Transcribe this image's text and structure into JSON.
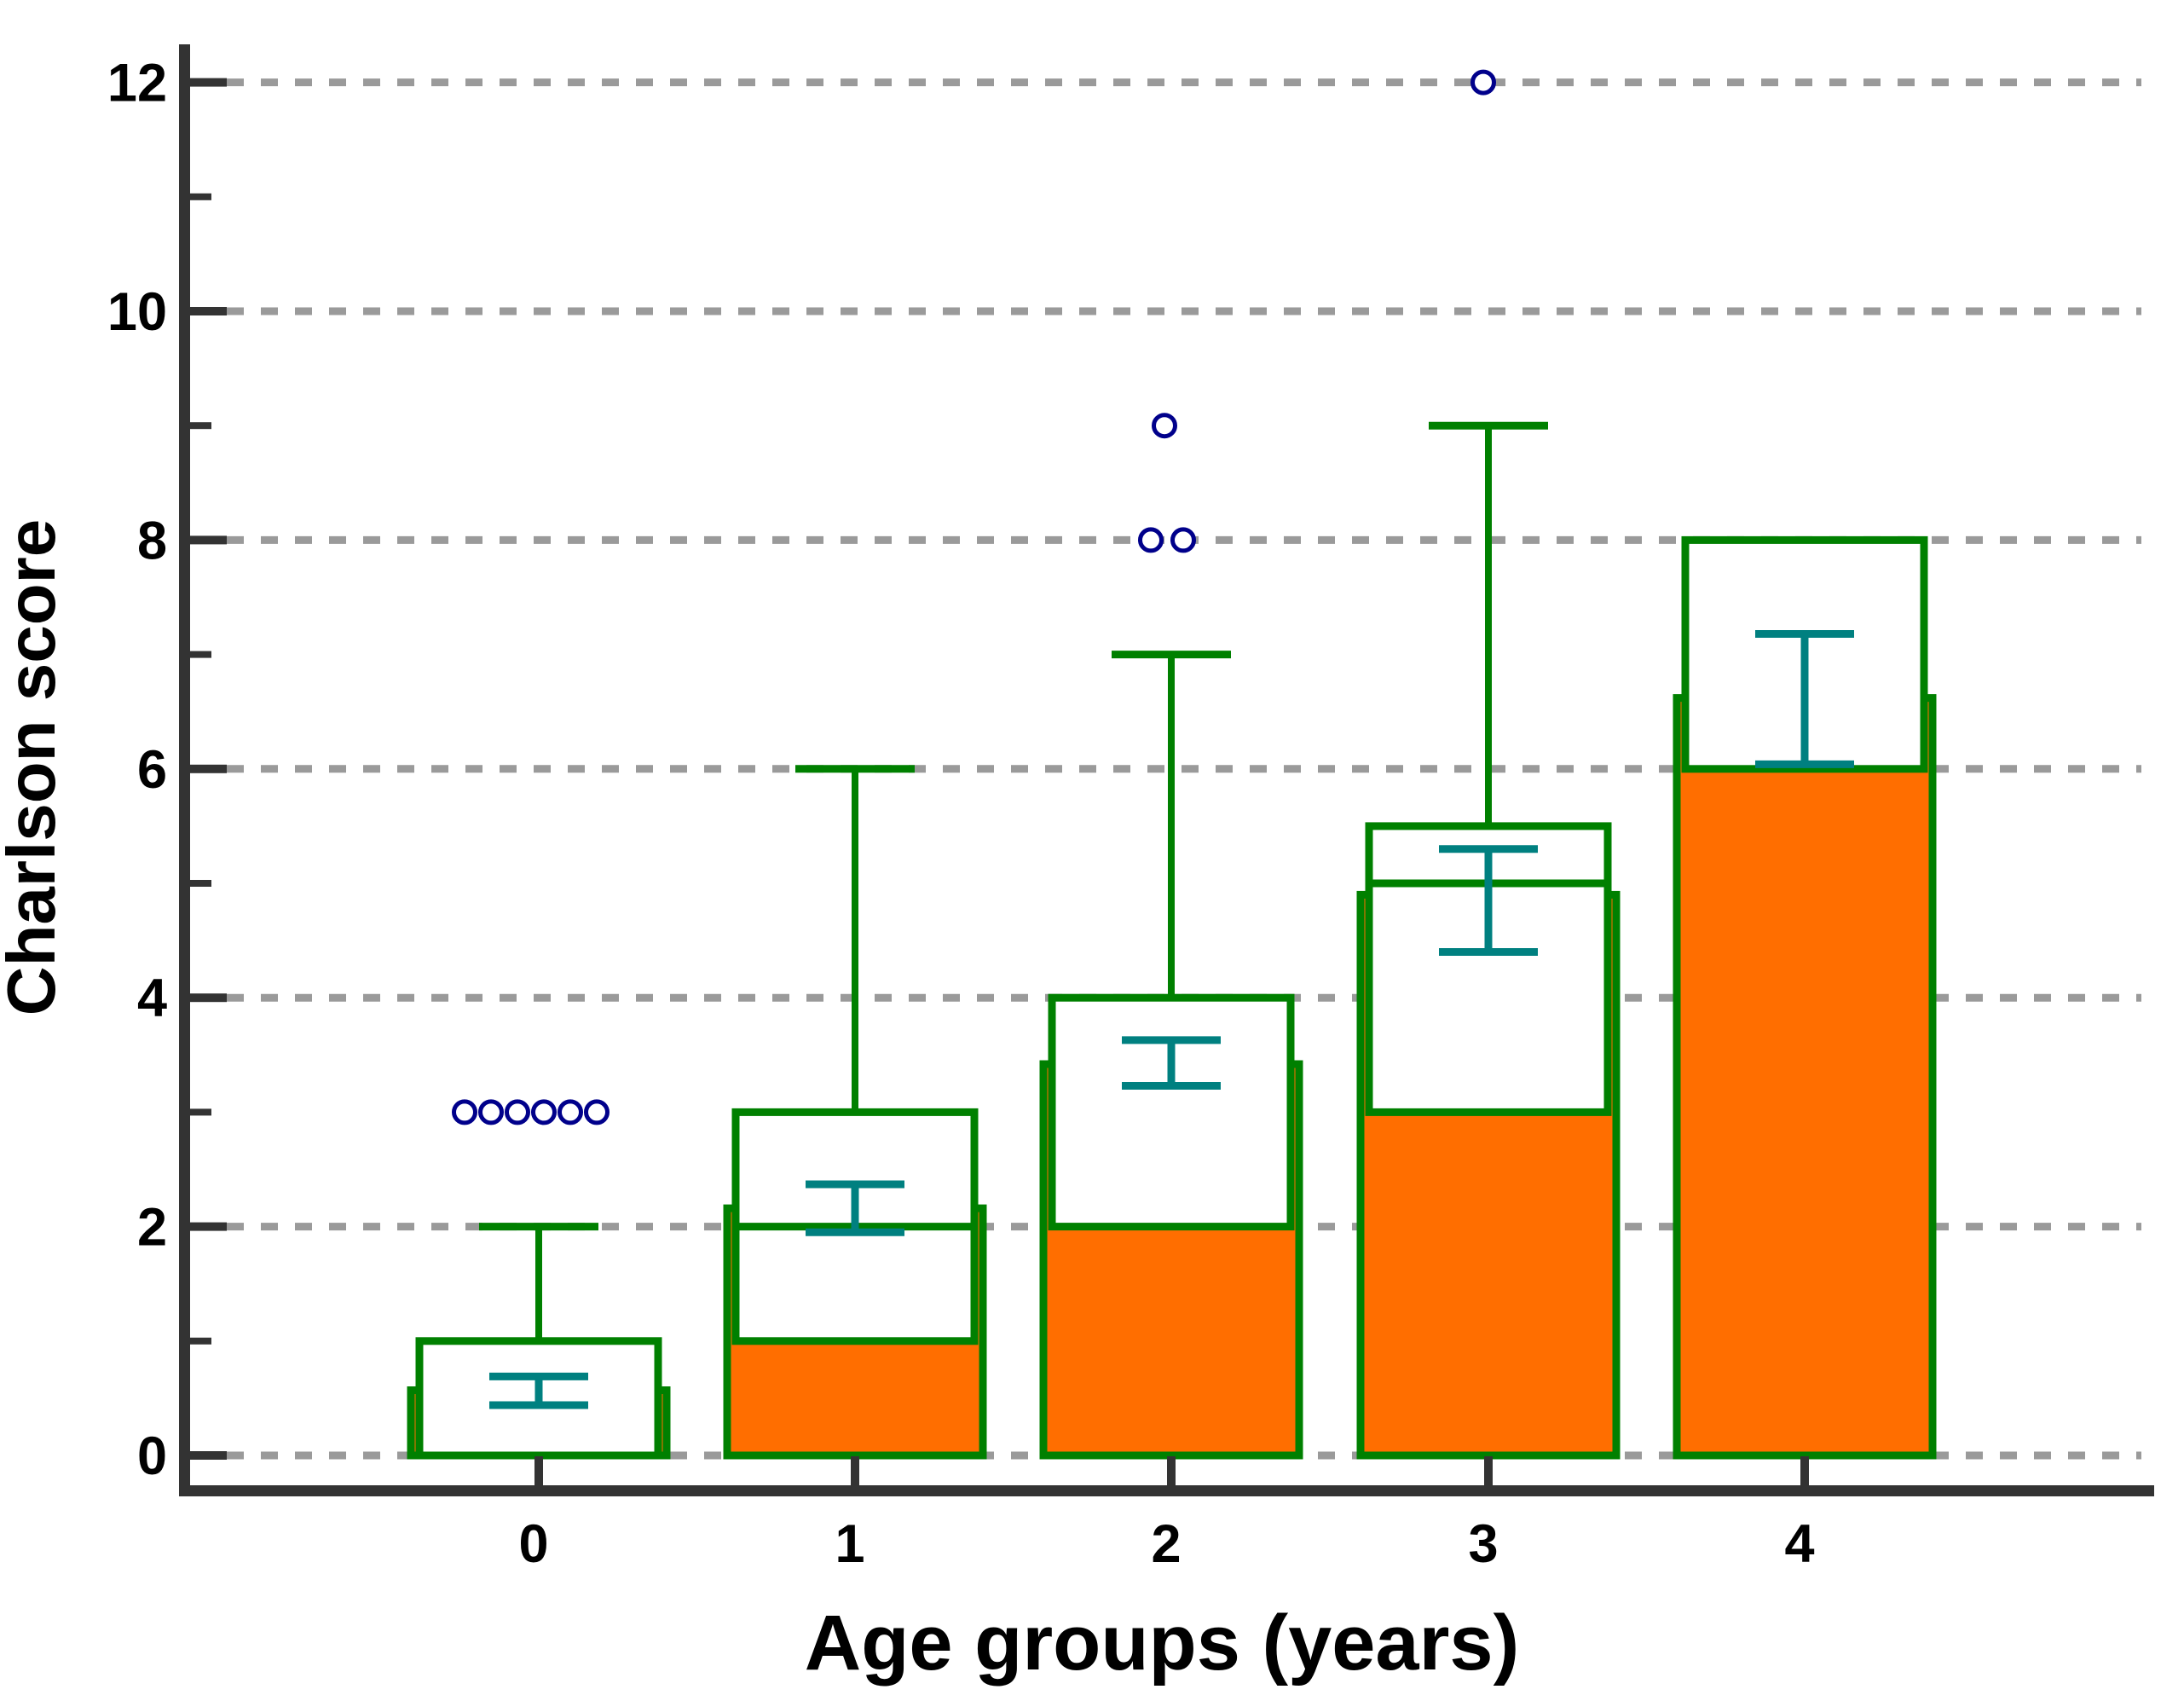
{
  "style": {
    "background": "#ffffff",
    "bar_fill": "#FF6E00",
    "box_stroke": "#008000",
    "box_fill": "#ffffff",
    "ci_color": "#008080",
    "outlier_stroke": "#00008B",
    "outlier_fill": "#ffffff",
    "grid_color": "#9A9A9A",
    "axis_color": "#333333",
    "text_color": "#000000"
  },
  "chart_data": {
    "type": "box-bar-combo",
    "title": "",
    "xlabel": "Age groups (years)",
    "ylabel": "Charlson score",
    "x_tick_labels": [
      "0",
      "1",
      "2",
      "3",
      "4"
    ],
    "y_major_ticks": [
      0,
      2,
      4,
      6,
      8,
      10,
      12
    ],
    "y_tick_labels": [
      "0",
      "2",
      "4",
      "6",
      "8",
      "10",
      "12"
    ],
    "y_minor_ticks": [
      1,
      3,
      5,
      7,
      9,
      11
    ],
    "ylim": [
      0,
      12.35
    ],
    "grid": {
      "style": "horizontal dashed at labeled (even) values",
      "color": "#9A9A9A"
    },
    "legend": "none",
    "series": [
      {
        "name": "mean (orange bar)",
        "type": "bar",
        "values": [
          0.57,
          2.16,
          3.42,
          4.9,
          6.62
        ]
      },
      {
        "name": "95% CI (teal error bar)",
        "type": "errorbar",
        "lo": [
          0.44,
          1.95,
          3.23,
          4.4,
          6.04
        ],
        "hi": [
          0.69,
          2.37,
          3.63,
          5.3,
          7.18
        ]
      },
      {
        "name": "boxplot (green)",
        "type": "boxplot",
        "q1": [
          0,
          1,
          2,
          3,
          6
        ],
        "median": [
          0,
          2,
          2,
          5,
          6
        ],
        "q3": [
          1,
          3,
          4,
          5.5,
          8
        ],
        "whisker_high": [
          2,
          6,
          7,
          9,
          null
        ]
      },
      {
        "name": "outliers (navy circles)",
        "type": "scatter",
        "points": [
          [
            0,
            3
          ],
          [
            0,
            3
          ],
          [
            0,
            3
          ],
          [
            0,
            3
          ],
          [
            0,
            3
          ],
          [
            0,
            3
          ],
          [
            2,
            9
          ],
          [
            2,
            8
          ],
          [
            2,
            8
          ],
          [
            3,
            12
          ]
        ]
      }
    ],
    "groups": [
      {
        "label": "0",
        "mean": 0.57,
        "ci_lo": 0.44,
        "ci_hi": 0.69,
        "q1": 0,
        "median": 0,
        "q3": 1,
        "whisker_high": 2,
        "outliers": [
          {
            "dx": -87,
            "y": 3
          },
          {
            "dx": -56,
            "y": 3
          },
          {
            "dx": -25,
            "y": 3
          },
          {
            "dx": 6,
            "y": 3
          },
          {
            "dx": 37,
            "y": 3
          },
          {
            "dx": 68,
            "y": 3
          }
        ]
      },
      {
        "label": "1",
        "mean": 2.16,
        "ci_lo": 1.95,
        "ci_hi": 2.37,
        "q1": 1,
        "median": 2,
        "q3": 3,
        "whisker_high": 6,
        "outliers": []
      },
      {
        "label": "2",
        "mean": 3.42,
        "ci_lo": 3.23,
        "ci_hi": 3.63,
        "q1": 2,
        "median": 2,
        "q3": 4,
        "whisker_high": 7,
        "outliers": [
          {
            "dx": -8,
            "y": 9
          },
          {
            "dx": -24,
            "y": 8
          },
          {
            "dx": 14,
            "y": 8
          }
        ]
      },
      {
        "label": "3",
        "mean": 4.9,
        "ci_lo": 4.4,
        "ci_hi": 5.3,
        "q1": 3,
        "median": 5,
        "q3": 5.5,
        "whisker_high": 9,
        "outliers": [
          {
            "dx": -6,
            "y": 12
          }
        ]
      },
      {
        "label": "4",
        "mean": 6.62,
        "ci_lo": 6.04,
        "ci_hi": 7.18,
        "q1": 6,
        "median": 6,
        "q3": 8,
        "whisker_high": null,
        "outliers": []
      }
    ]
  }
}
